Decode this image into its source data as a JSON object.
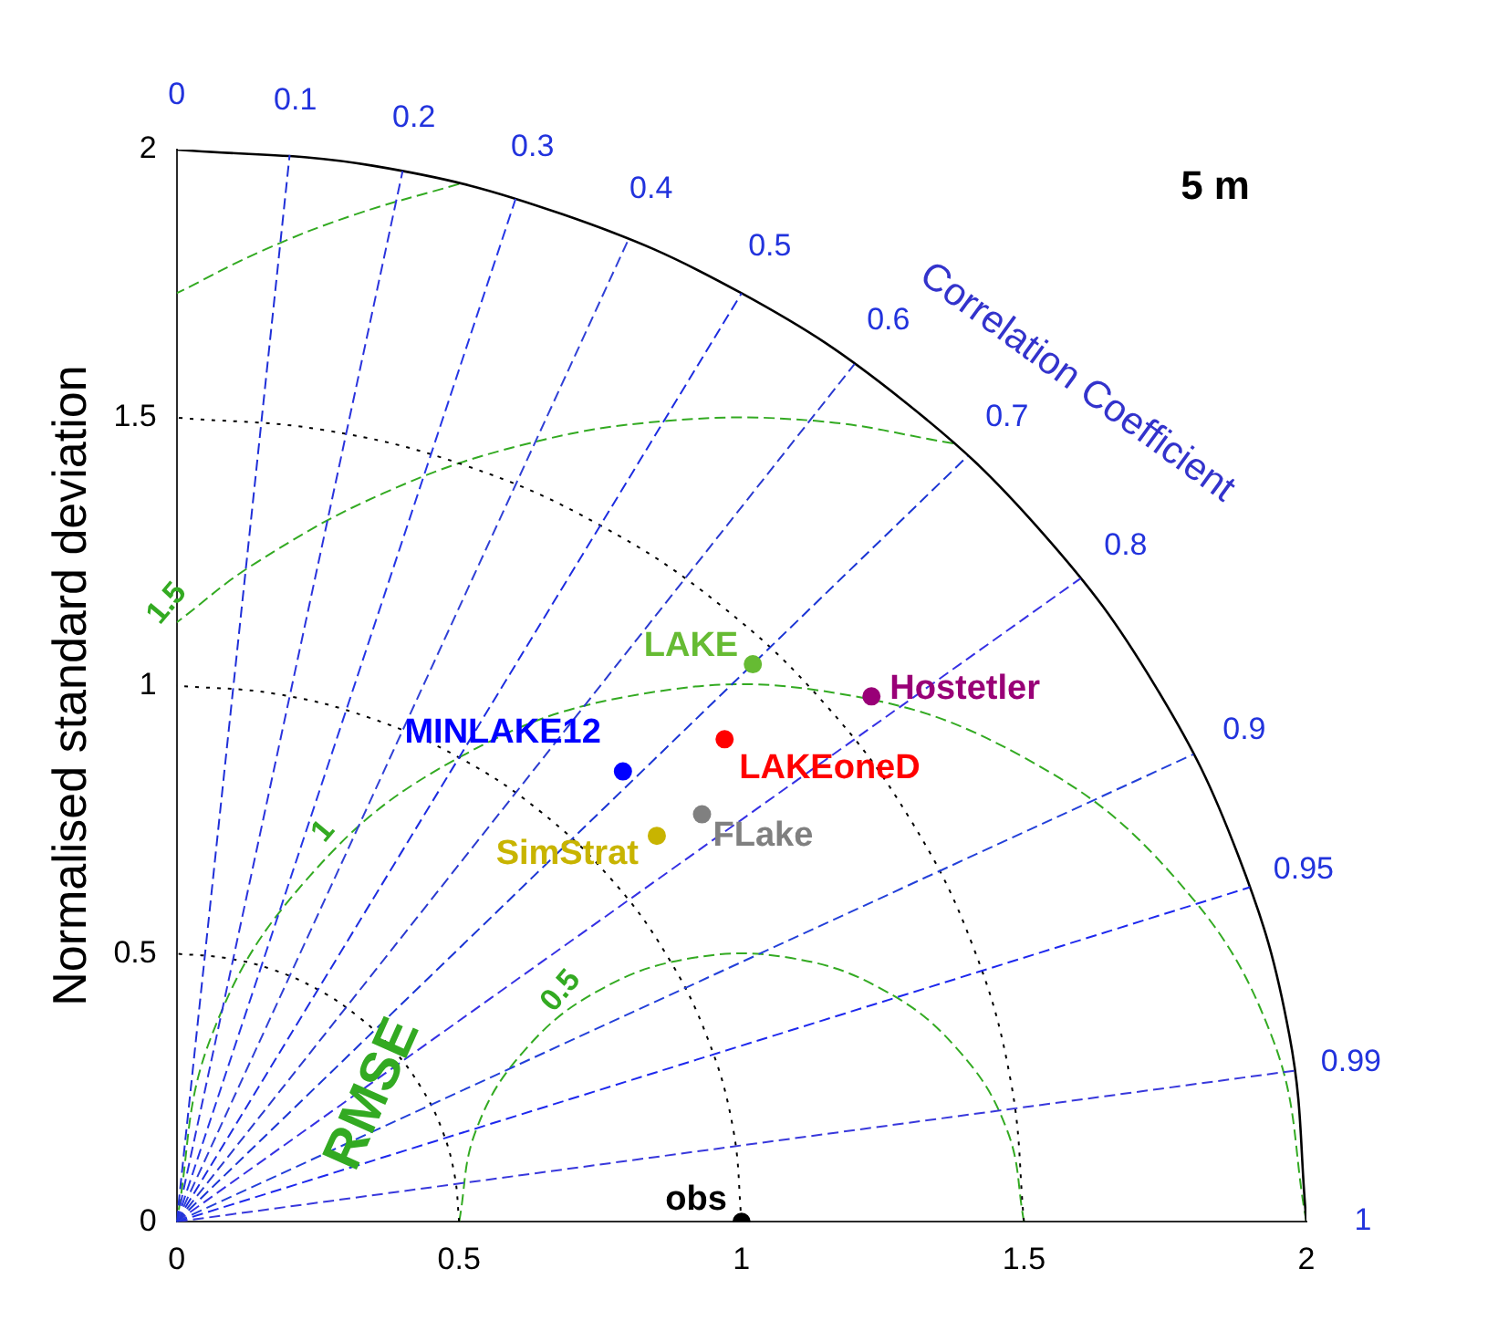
{
  "chart_data": {
    "type": "scatter",
    "ylabel": "Normalised standard deviation",
    "legend": false,
    "grid": false,
    "marker": "circle",
    "xlim": [
      0,
      2
    ],
    "ylim": [
      0,
      2
    ],
    "xticks": [
      0,
      0.5,
      1,
      1.5,
      2
    ],
    "yticks": [
      0,
      0.5,
      1,
      1.5,
      2
    ],
    "series": [
      {
        "name": "obs",
        "color": "#000000",
        "x": [
          1
        ],
        "values": [
          0
        ]
      },
      {
        "name": "LAKE",
        "color": "#66bb33",
        "x": [
          1.02
        ],
        "values": [
          1.04
        ]
      },
      {
        "name": "Hostetler",
        "color": "#990077",
        "x": [
          1.23
        ],
        "values": [
          0.98
        ]
      },
      {
        "name": "LAKEoneD",
        "color": "#ff0000",
        "x": [
          0.97
        ],
        "values": [
          0.9
        ]
      },
      {
        "name": "MINLAKE12",
        "color": "#0000ff",
        "x": [
          0.79
        ],
        "values": [
          0.84
        ]
      },
      {
        "name": "FLake",
        "color": "#808080",
        "x": [
          0.93
        ],
        "values": [
          0.76
        ]
      },
      {
        "name": "SimStrat",
        "color": "#c8b400",
        "x": [
          0.85
        ],
        "values": [
          0.72
        ]
      },
      {
        "type": "line",
        "marker": "none",
        "color": "#1f2fd8",
        "line_style": "dashed",
        "x": [
          0,
          0.2
        ],
        "values": [
          0,
          1.99
        ]
      },
      {
        "type": "line",
        "marker": "none",
        "color": "#2a33dd",
        "line_style": "dashed",
        "x": [
          0,
          0.4
        ],
        "values": [
          0,
          1.96
        ]
      },
      {
        "type": "line",
        "marker": "none",
        "color": "#2536e6",
        "line_style": "dashed",
        "x": [
          0,
          0.6
        ],
        "values": [
          0,
          1.908
        ]
      },
      {
        "type": "line",
        "marker": "none",
        "color": "#3040d6",
        "line_style": "dashed",
        "x": [
          0,
          0.8
        ],
        "values": [
          0,
          1.833
        ]
      },
      {
        "type": "line",
        "marker": "none",
        "color": "#1c2ce0",
        "line_style": "dashed",
        "x": [
          0,
          1
        ],
        "values": [
          0,
          1.732
        ]
      },
      {
        "type": "line",
        "marker": "none",
        "color": "#2a3ad0",
        "line_style": "dashed",
        "x": [
          0,
          1.2
        ],
        "values": [
          0,
          1.6
        ]
      },
      {
        "type": "line",
        "marker": "none",
        "color": "#1a35d4",
        "line_style": "dashed",
        "x": [
          0,
          1.4
        ],
        "values": [
          0,
          1.428
        ]
      },
      {
        "type": "line",
        "marker": "none",
        "color": "#3531e4",
        "line_style": "dashed",
        "x": [
          0,
          1.6
        ],
        "values": [
          0,
          1.2
        ]
      },
      {
        "type": "line",
        "marker": "none",
        "color": "#2340d9",
        "line_style": "dashed",
        "x": [
          0,
          1.8
        ],
        "values": [
          0,
          0.872
        ]
      },
      {
        "type": "line",
        "marker": "none",
        "color": "#1d28ee",
        "line_style": "dashed",
        "x": [
          0,
          1.9
        ],
        "values": [
          0,
          0.624
        ]
      },
      {
        "type": "line",
        "marker": "none",
        "color": "#3838dc",
        "line_style": "dashed",
        "x": [
          0,
          1.98
        ],
        "values": [
          0,
          0.282
        ]
      },
      {
        "type": "line",
        "marker": "none",
        "color": "#000000",
        "line_style": "dotted",
        "x": [
          0.5,
          0.492,
          0.47,
          0.433,
          0.383,
          0.321,
          0.25,
          0.171,
          0.087,
          0
        ],
        "values": [
          0,
          0.087,
          0.171,
          0.25,
          0.321,
          0.383,
          0.433,
          0.47,
          0.492,
          0.5
        ]
      },
      {
        "type": "line",
        "marker": "none",
        "color": "#000000",
        "line_style": "dotted",
        "x": [
          1,
          0.985,
          0.94,
          0.866,
          0.766,
          0.643,
          0.5,
          0.342,
          0.174,
          0
        ],
        "values": [
          0,
          0.174,
          0.342,
          0.5,
          0.643,
          0.766,
          0.866,
          0.94,
          0.985,
          1
        ]
      },
      {
        "type": "line",
        "marker": "none",
        "color": "#000000",
        "line_style": "dotted",
        "x": [
          1.5,
          1.477,
          1.41,
          1.299,
          1.149,
          0.964,
          0.75,
          0.513,
          0.26,
          0
        ],
        "values": [
          0,
          0.26,
          0.513,
          0.75,
          0.964,
          1.149,
          1.299,
          1.41,
          1.477,
          1.5
        ]
      },
      {
        "type": "line",
        "marker": "none",
        "color": "#000000",
        "line_style": "solid",
        "x": [
          2,
          1.97,
          1.879,
          1.732,
          1.532,
          1.286,
          1,
          0.684,
          0.347,
          0
        ],
        "values": [
          0,
          0.347,
          0.684,
          1,
          1.286,
          1.532,
          1.732,
          1.879,
          1.97,
          2
        ]
      },
      {
        "type": "line",
        "marker": "none",
        "color": "#33aa22",
        "line_style": "dashed",
        "x": [
          1.5,
          1.47,
          1.383,
          1.25,
          1.087,
          0.913,
          0.75,
          0.617,
          0.53,
          0.5
        ],
        "values": [
          0,
          0.171,
          0.321,
          0.433,
          0.492,
          0.492,
          0.433,
          0.321,
          0.171,
          0
        ]
      },
      {
        "type": "line",
        "marker": "none",
        "color": "#33aa22",
        "line_style": "dashed",
        "x": [
          2,
          1.94,
          1.766,
          1.5,
          1.174,
          0.826,
          0.5,
          0.234,
          0.06,
          0
        ],
        "values": [
          0,
          0.342,
          0.643,
          0.866,
          0.985,
          0.985,
          0.866,
          0.643,
          0.342,
          0
        ]
      },
      {
        "type": "line",
        "marker": "none",
        "color": "#33aa22",
        "line_style": "dashed",
        "x": [
          1.375,
          1.131,
          0.869,
          0.612,
          0.366,
          0.14,
          0
        ],
        "values": [
          1.452,
          1.494,
          1.494,
          1.449,
          1.359,
          1.229,
          1.118
        ]
      },
      {
        "type": "line",
        "marker": "none",
        "color": "#33aa22",
        "line_style": "dashed",
        "x": [
          0.5,
          0.316,
          0.155,
          0
        ],
        "values": [
          1.936,
          1.879,
          1.813,
          1.732
        ]
      }
    ],
    "annotations": [
      "5 m",
      "Correlation Coefficient",
      "RMSE",
      "0",
      "0.1",
      "0.2",
      "0.3",
      "0.4",
      "0.5",
      "0.6",
      "0.7",
      "0.8",
      "0.9",
      "0.95",
      "0.99",
      "1",
      "0.5",
      "1",
      "1.5"
    ]
  }
}
